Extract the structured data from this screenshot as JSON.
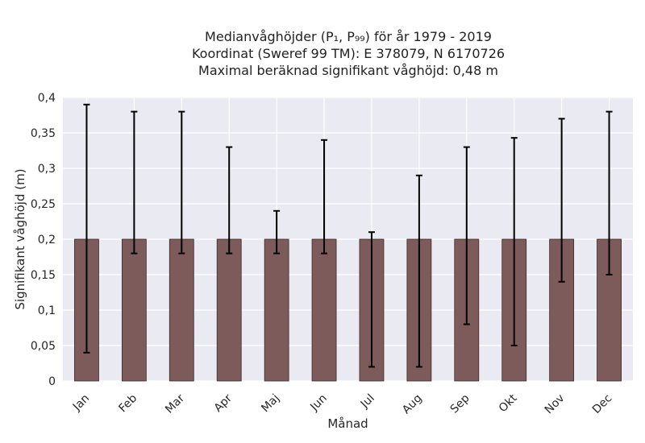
{
  "chart_data": {
    "type": "bar",
    "title_lines": [
      "Medianvåghöjder (P₁, P₉₉) för år 1979 - 2019",
      "Koordinat (Sweref 99 TM): E 378079, N 6170726",
      "Maximal beräknad signifikant våghöjd: 0,48 m"
    ],
    "xlabel": "Månad",
    "ylabel": "Signifikant våghöjd (m)",
    "categories": [
      "Jan",
      "Feb",
      "Mar",
      "Apr",
      "Maj",
      "Jun",
      "Jul",
      "Aug",
      "Sep",
      "Okt",
      "Nov",
      "Dec"
    ],
    "values": [
      0.2,
      0.2,
      0.2,
      0.2,
      0.2,
      0.2,
      0.2,
      0.2,
      0.2,
      0.2,
      0.2,
      0.2
    ],
    "err_low": [
      0.04,
      0.18,
      0.18,
      0.18,
      0.18,
      0.18,
      0.02,
      0.02,
      0.08,
      0.05,
      0.14,
      0.15
    ],
    "err_high": [
      0.39,
      0.38,
      0.38,
      0.33,
      0.24,
      0.34,
      0.21,
      0.29,
      0.33,
      0.343,
      0.37,
      0.38
    ],
    "ylim": [
      0,
      0.4
    ],
    "yticks": [
      0,
      0.05,
      0.1,
      0.15,
      0.2,
      0.25,
      0.3,
      0.35,
      0.4
    ],
    "ytick_labels": [
      "0",
      "0,05",
      "0,1",
      "0,15",
      "0,2",
      "0,25",
      "0,3",
      "0,35",
      "0,4"
    ],
    "grid": true,
    "colors": {
      "bar": "#7d5b5b",
      "bar_edge": "#3a2a2a",
      "error": "#000000",
      "background": "#eaeaf2",
      "grid": "#ffffff"
    }
  }
}
